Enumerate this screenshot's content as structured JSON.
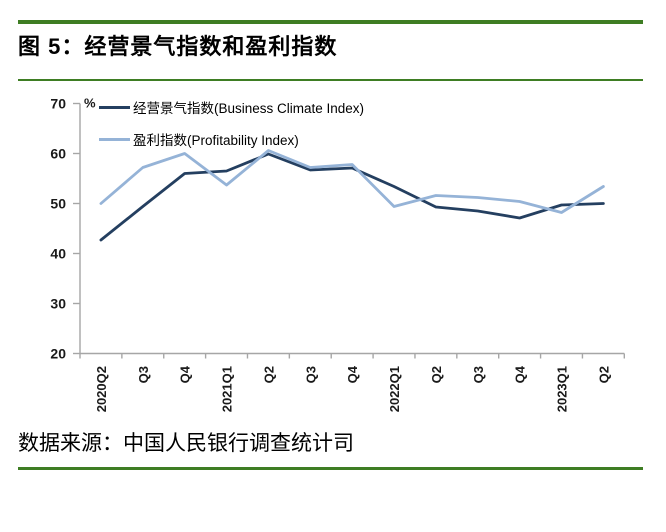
{
  "figure_title": "图 5：经营景气指数和盈利指数",
  "source_note": "数据来源：中国人民银行调查统计司",
  "colors": {
    "accent_rule_green": "#3E7D23",
    "series_dark_navy": "#243F60",
    "series_light_blue": "#95B3D7",
    "axis_gray": "#A6A6A6"
  },
  "chart_data": {
    "type": "line",
    "title": "经营景气指数和盈利指数",
    "ylabel": "%",
    "xlabel": "",
    "ylim": [
      20,
      70
    ],
    "yticks": [
      20,
      30,
      40,
      50,
      60,
      70
    ],
    "grid": false,
    "legend_position": "top-left-inside",
    "categories": [
      "2020Q2",
      "Q3",
      "Q4",
      "2021Q1",
      "Q2",
      "Q3",
      "Q4",
      "2022Q1",
      "Q2",
      "Q3",
      "Q4",
      "2023Q1",
      "Q2"
    ],
    "series": [
      {
        "name": "经营景气指数(Business Climate Index)",
        "color": "#243F60",
        "values": [
          42.7,
          49.4,
          56.0,
          56.5,
          59.9,
          56.7,
          57.1,
          53.4,
          49.3,
          48.5,
          47.1,
          49.7,
          50.0
        ]
      },
      {
        "name": "盈利指数(Profitability Index)",
        "color": "#95B3D7",
        "values": [
          50.0,
          57.2,
          60.0,
          53.7,
          60.6,
          57.2,
          57.8,
          49.4,
          51.6,
          51.2,
          50.4,
          48.2,
          53.4
        ]
      }
    ]
  }
}
